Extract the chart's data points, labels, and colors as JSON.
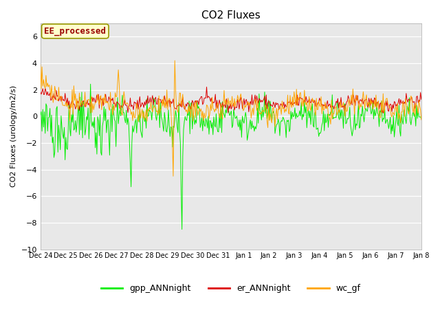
{
  "title": "CO2 Fluxes",
  "ylabel": "CO2 Fluxes (urology/m2/s)",
  "ylim": [
    -10,
    7
  ],
  "yticks": [
    -10,
    -8,
    -6,
    -4,
    -2,
    0,
    2,
    4,
    6
  ],
  "bg_color": "#e8e8e8",
  "fig_color": "#ffffff",
  "annotation_text": "EE_processed",
  "annotation_color": "#990000",
  "annotation_bg": "#ffffcc",
  "annotation_border": "#999900",
  "line_colors": {
    "gpp": "#00ee00",
    "er": "#dd0000",
    "wc": "#ffa500"
  },
  "legend_labels": [
    "gpp_ANNnight",
    "er_ANNnight",
    "wc_gf"
  ],
  "n_points": 480,
  "x_tick_labels": [
    "Dec 24",
    "Dec 25",
    "Dec 26",
    "Dec 27",
    "Dec 28",
    "Dec 29",
    "Dec 30",
    "Dec 31",
    "Jan 1",
    "Jan 2",
    "Jan 3",
    "Jan 4",
    "Jan 5",
    "Jan 6",
    "Jan 7",
    "Jan 8"
  ],
  "seed": 42
}
